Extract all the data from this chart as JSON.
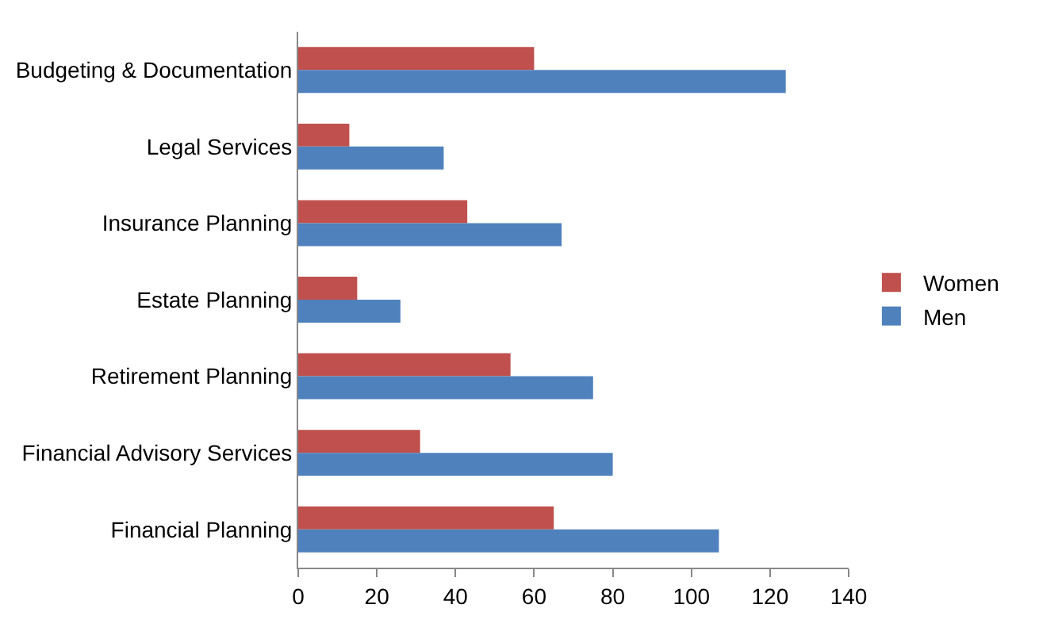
{
  "chart_data": {
    "type": "bar",
    "orientation": "horizontal",
    "categories": [
      "Budgeting & Documentation",
      "Legal Services",
      "Insurance Planning",
      "Estate Planning",
      "Retirement Planning",
      "Financial Advisory Services",
      "Financial Planning"
    ],
    "series": [
      {
        "name": "Women",
        "color": "#c0504d",
        "values": [
          60,
          13,
          43,
          15,
          54,
          31,
          65
        ]
      },
      {
        "name": "Men",
        "color": "#4f81bd",
        "values": [
          124,
          37,
          67,
          26,
          75,
          80,
          107
        ]
      }
    ],
    "xlim": [
      0,
      140
    ],
    "xticks": [
      0,
      20,
      40,
      60,
      80,
      100,
      120,
      140
    ],
    "grid": false,
    "legend": "right"
  }
}
